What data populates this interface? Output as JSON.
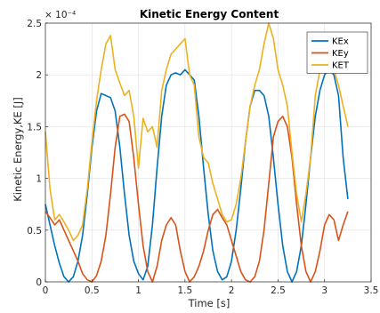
{
  "chart_data": {
    "type": "line",
    "title": "Kinetic Energy Content",
    "xlabel": "Time [s]",
    "ylabel": "Kinetic Energy,KE [J]",
    "y_exponent_label": "× 10⁻⁴",
    "xlim": [
      0,
      3.5
    ],
    "ylim": [
      0,
      2.5
    ],
    "y_scale_note": "values in units of 1e-4 J",
    "xticks": [
      "0",
      "0.5",
      "1",
      "1.5",
      "2",
      "2.5",
      "3",
      "3.5"
    ],
    "yticks": [
      "0",
      "0.5",
      "1",
      "1.5",
      "2",
      "2.5"
    ],
    "grid": true,
    "legend_position": "top-right",
    "colors": {
      "KEx": "#0072BD",
      "KEy": "#D95319",
      "KET": "#EDB120"
    },
    "series": [
      {
        "name": "KEx",
        "x": [
          0.0,
          0.05,
          0.1,
          0.15,
          0.2,
          0.25,
          0.3,
          0.35,
          0.4,
          0.45,
          0.5,
          0.55,
          0.6,
          0.65,
          0.7,
          0.75,
          0.8,
          0.85,
          0.9,
          0.95,
          1.0,
          1.05,
          1.1,
          1.15,
          1.2,
          1.25,
          1.3,
          1.35,
          1.4,
          1.45,
          1.5,
          1.55,
          1.6,
          1.65,
          1.7,
          1.75,
          1.8,
          1.85,
          1.9,
          1.95,
          2.0,
          2.05,
          2.1,
          2.15,
          2.2,
          2.25,
          2.3,
          2.35,
          2.4,
          2.45,
          2.5,
          2.55,
          2.6,
          2.65,
          2.7,
          2.75,
          2.8,
          2.85,
          2.9,
          2.95,
          3.0,
          3.05,
          3.1,
          3.15,
          3.2,
          3.25
        ],
        "values": [
          0.75,
          0.55,
          0.35,
          0.18,
          0.05,
          0.0,
          0.05,
          0.2,
          0.45,
          0.85,
          1.3,
          1.65,
          1.82,
          1.8,
          1.78,
          1.65,
          1.3,
          0.85,
          0.45,
          0.2,
          0.08,
          0.02,
          0.15,
          0.55,
          1.1,
          1.6,
          1.9,
          2.0,
          2.02,
          2.0,
          2.05,
          2.0,
          1.95,
          1.6,
          1.1,
          0.65,
          0.3,
          0.1,
          0.02,
          0.05,
          0.2,
          0.5,
          0.9,
          1.35,
          1.7,
          1.85,
          1.85,
          1.8,
          1.6,
          1.2,
          0.75,
          0.35,
          0.1,
          0.0,
          0.1,
          0.35,
          0.75,
          1.2,
          1.6,
          1.85,
          2.0,
          2.05,
          2.0,
          1.8,
          1.2,
          0.8
        ]
      },
      {
        "name": "KEy",
        "x": [
          0.0,
          0.05,
          0.1,
          0.15,
          0.2,
          0.25,
          0.3,
          0.35,
          0.4,
          0.45,
          0.5,
          0.55,
          0.6,
          0.65,
          0.7,
          0.75,
          0.8,
          0.85,
          0.9,
          0.95,
          1.0,
          1.05,
          1.1,
          1.15,
          1.2,
          1.25,
          1.3,
          1.35,
          1.4,
          1.45,
          1.5,
          1.55,
          1.6,
          1.65,
          1.7,
          1.75,
          1.8,
          1.85,
          1.9,
          1.95,
          2.0,
          2.05,
          2.1,
          2.15,
          2.2,
          2.25,
          2.3,
          2.35,
          2.4,
          2.45,
          2.5,
          2.55,
          2.6,
          2.65,
          2.7,
          2.75,
          2.8,
          2.85,
          2.9,
          2.95,
          3.0,
          3.05,
          3.1,
          3.15,
          3.2,
          3.25
        ],
        "values": [
          0.68,
          0.62,
          0.55,
          0.6,
          0.5,
          0.4,
          0.3,
          0.2,
          0.08,
          0.02,
          0.0,
          0.06,
          0.2,
          0.45,
          0.85,
          1.3,
          1.6,
          1.62,
          1.55,
          1.2,
          0.75,
          0.35,
          0.1,
          0.0,
          0.15,
          0.4,
          0.55,
          0.62,
          0.55,
          0.3,
          0.1,
          0.0,
          0.05,
          0.15,
          0.3,
          0.5,
          0.65,
          0.7,
          0.62,
          0.55,
          0.4,
          0.25,
          0.1,
          0.02,
          0.0,
          0.05,
          0.2,
          0.5,
          0.95,
          1.4,
          1.55,
          1.6,
          1.5,
          1.2,
          0.75,
          0.35,
          0.1,
          0.0,
          0.1,
          0.3,
          0.55,
          0.65,
          0.6,
          0.4,
          0.55,
          0.68
        ]
      },
      {
        "name": "KET",
        "x": [
          0.0,
          0.05,
          0.1,
          0.15,
          0.2,
          0.25,
          0.3,
          0.35,
          0.4,
          0.45,
          0.5,
          0.55,
          0.6,
          0.65,
          0.7,
          0.75,
          0.8,
          0.85,
          0.9,
          0.95,
          1.0,
          1.05,
          1.1,
          1.15,
          1.2,
          1.25,
          1.3,
          1.35,
          1.4,
          1.45,
          1.5,
          1.55,
          1.6,
          1.65,
          1.7,
          1.75,
          1.8,
          1.85,
          1.9,
          1.95,
          2.0,
          2.05,
          2.1,
          2.15,
          2.2,
          2.25,
          2.3,
          2.35,
          2.4,
          2.45,
          2.5,
          2.55,
          2.6,
          2.65,
          2.7,
          2.75,
          2.8,
          2.85,
          2.9,
          2.95,
          3.0,
          3.05,
          3.1,
          3.15,
          3.2,
          3.25
        ],
        "values": [
          1.45,
          0.9,
          0.6,
          0.65,
          0.58,
          0.5,
          0.4,
          0.45,
          0.55,
          0.9,
          1.35,
          1.75,
          2.05,
          2.3,
          2.38,
          2.05,
          1.92,
          1.8,
          1.85,
          1.6,
          1.1,
          1.58,
          1.45,
          1.5,
          1.3,
          1.85,
          2.05,
          2.2,
          2.25,
          2.3,
          2.35,
          2.0,
          1.9,
          1.4,
          1.2,
          1.15,
          0.95,
          0.8,
          0.65,
          0.58,
          0.6,
          0.75,
          1.0,
          1.35,
          1.7,
          1.9,
          2.05,
          2.3,
          2.5,
          2.35,
          2.05,
          1.9,
          1.7,
          1.25,
          0.85,
          0.58,
          0.85,
          1.2,
          1.8,
          2.05,
          2.15,
          2.1,
          2.05,
          1.9,
          1.7,
          1.5
        ]
      }
    ]
  }
}
